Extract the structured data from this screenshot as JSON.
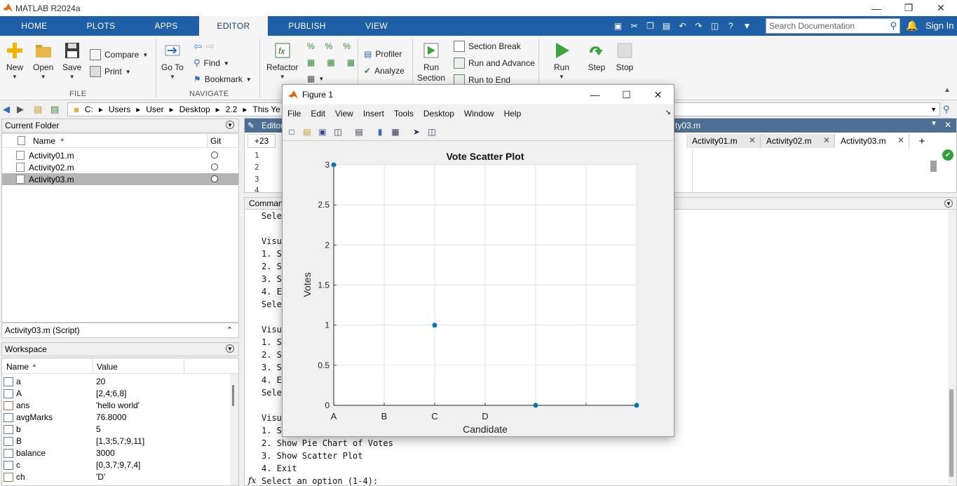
{
  "app": {
    "title": "MATLAB R2024a"
  },
  "ribbon_tabs": [
    "HOME",
    "PLOTS",
    "APPS",
    "EDITOR",
    "PUBLISH",
    "VIEW"
  ],
  "active_tab": "EDITOR",
  "search": {
    "placeholder": "Search Documentation"
  },
  "signin": "Sign In",
  "ribbon": {
    "new": "New",
    "open": "Open",
    "save": "Save",
    "compare": "Compare",
    "print": "Print",
    "file_group": "FILE",
    "goto": "Go To",
    "find": "Find",
    "bookmark": "Bookmark",
    "navigate_group": "NAVIGATE",
    "refactor": "Refactor",
    "profiler": "Profiler",
    "analyze": "Analyze",
    "run_section": "Run Section",
    "section_break": "Section Break",
    "run_and_advance": "Run and Advance",
    "run_to_end": "Run to End",
    "run": "Run",
    "step": "Step",
    "stop": "Stop"
  },
  "path": [
    "C:",
    "Users",
    "User",
    "Desktop",
    "2.2",
    "This Ye"
  ],
  "current_folder": {
    "title": "Current Folder",
    "col_name": "Name",
    "col_git": "Git",
    "files": [
      "Activity01.m",
      "Activity02.m",
      "Activity03.m"
    ],
    "selected": "Activity03.m",
    "details": "Activity03.m  (Script)"
  },
  "workspace": {
    "title": "Workspace",
    "col_name": "Name",
    "col_value": "Value",
    "vars": [
      {
        "name": "a",
        "value": "20"
      },
      {
        "name": "A",
        "value": "[2,4;6,8]"
      },
      {
        "name": "ans",
        "value": "'hello world'"
      },
      {
        "name": "avgMarks",
        "value": "76.8000"
      },
      {
        "name": "b",
        "value": "5"
      },
      {
        "name": "B",
        "value": "[1,3;5,7;9,11]"
      },
      {
        "name": "balance",
        "value": "3000"
      },
      {
        "name": "c",
        "value": "[0,3,7;9,7,4]"
      },
      {
        "name": "ch",
        "value": "'D'"
      }
    ]
  },
  "editor": {
    "header": "Editor",
    "header_right": "ty03.m",
    "tabs": [
      "Activity01.m",
      "Activity02.m",
      "Activity03.m"
    ],
    "active_tab": "Activity03.m",
    "hidden_count": "+23",
    "line_numbers": [
      "1",
      "2",
      "3",
      "4"
    ]
  },
  "command_window": {
    "title": "Comman",
    "lines": [
      "Sele",
      "",
      "Visu",
      "1. S",
      "2. S",
      "3. S",
      "4. E",
      "Sele",
      "",
      "Visu",
      "1. S",
      "2. S",
      "3. S",
      "4. E",
      "Sele",
      "",
      "Visu",
      "1. S",
      "2. Show Pie Chart of Votes",
      "3. Show Scatter Plot",
      "4. Exit"
    ],
    "prompt": "Select an option (1-4):",
    "fx": "fx"
  },
  "figure": {
    "title": "Figure 1",
    "menus": [
      "File",
      "Edit",
      "View",
      "Insert",
      "Tools",
      "Desktop",
      "Window",
      "Help"
    ]
  },
  "chart_data": {
    "type": "scatter",
    "title": "Vote Scatter Plot",
    "xlabel": "Candidate",
    "ylabel": "Votes",
    "x_tick_labels": [
      "A",
      "B",
      "C",
      "D"
    ],
    "x": [
      1,
      3,
      5,
      7
    ],
    "y": [
      3,
      1,
      0,
      0
    ],
    "xlim": [
      1,
      7
    ],
    "ylim": [
      0,
      3
    ],
    "y_ticks": [
      0,
      0.5,
      1,
      1.5,
      2,
      2.5,
      3
    ],
    "grid": true,
    "marker_color": "#0072bd"
  }
}
